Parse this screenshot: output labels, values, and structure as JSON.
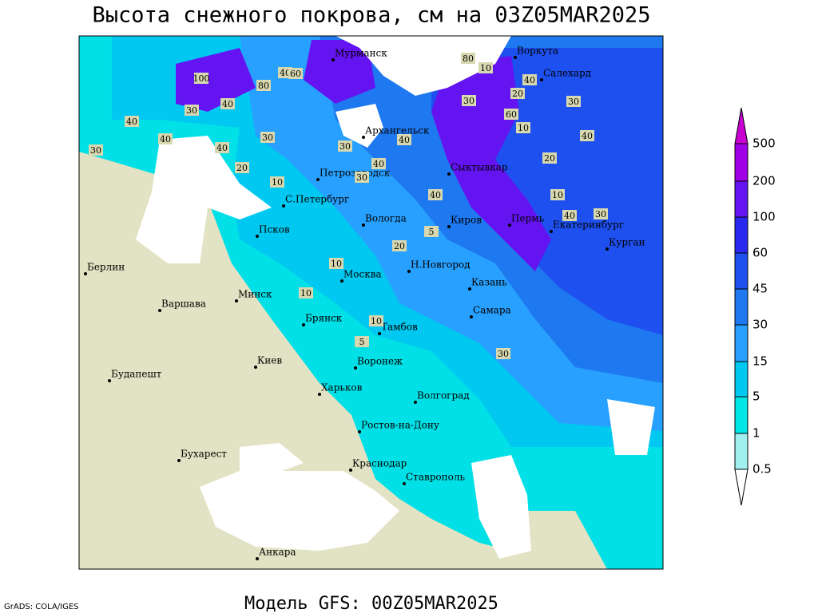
{
  "header": {
    "title": "Высота снежного покрова, см на 03Z05MAR2025"
  },
  "footer": {
    "model": "Модель GFS: 00Z05MAR2025",
    "credit": "GrADS: COLA/IGES"
  },
  "cities": [
    "Мурманск",
    "Воркута",
    "Салехард",
    "Архангельск",
    "Сыктывкар",
    "Петрозаводск",
    "С.Петербург",
    "Вологда",
    "Киров",
    "Пермь",
    "Екатеринбург",
    "Курган",
    "Псков",
    "Берлин",
    "Н.Новгород",
    "Казань",
    "Москва",
    "Минск",
    "Варшава",
    "Брянск",
    "Тамбов",
    "Самара",
    "Киев",
    "Воронеж",
    "Будапешт",
    "Харьков",
    "Волгоград",
    "Бухарест",
    "Ростов-на-Дону",
    "Краснодар",
    "Ставрополь",
    "Анкара"
  ],
  "contour_labels": [
    40,
    30,
    40,
    30,
    40,
    20,
    30,
    10,
    40,
    60,
    100,
    80,
    40,
    80,
    30,
    10,
    20,
    40,
    60,
    40,
    30,
    10,
    20,
    10,
    5,
    40,
    30,
    40,
    40,
    30,
    40,
    30,
    10,
    20,
    10,
    10,
    5,
    30
  ],
  "legend": {
    "levels": [
      0.5,
      1,
      5,
      15,
      30,
      45,
      60,
      100,
      200,
      500
    ],
    "colors": [
      "#a0f0f0",
      "#00e6e6",
      "#00c8f0",
      "#28a0ff",
      "#1e78f0",
      "#1e50f0",
      "#2828f0",
      "#6414f0",
      "#a000e6",
      "#c800d2"
    ]
  }
}
